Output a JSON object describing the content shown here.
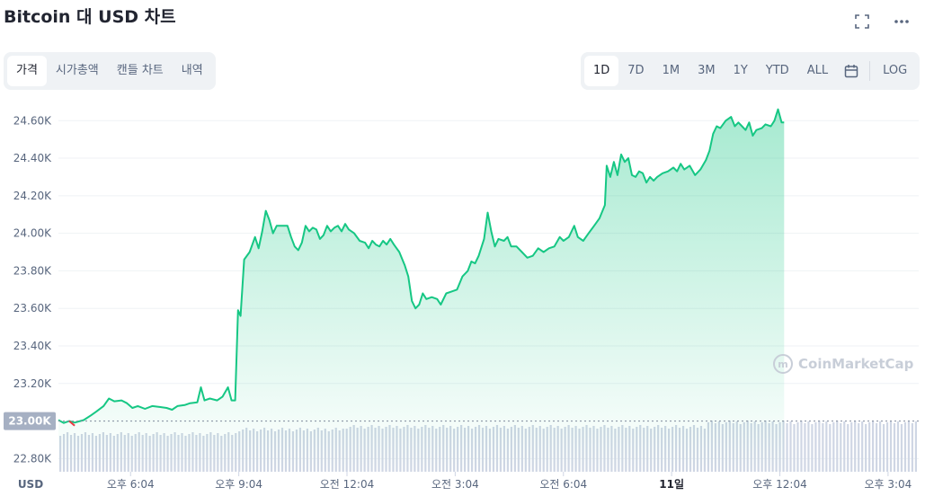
{
  "header": {
    "title": "Bitcoin 대 USD 차트",
    "fullscreen_icon": "expand-icon",
    "more_icon": "more-icon"
  },
  "view_tabs": [
    "가격",
    "시가총액",
    "캔들 차트",
    "내역"
  ],
  "active_view_tab": "가격",
  "range_tabs": [
    "1D",
    "7D",
    "1M",
    "3M",
    "1Y",
    "YTD",
    "ALL"
  ],
  "active_range_tab": "1D",
  "calendar_icon": "calendar-icon",
  "log_label": "LOG",
  "watermark": "CoinMarketCap",
  "colors": {
    "line": "#16c784",
    "down": "#ea3943",
    "current_badge": "#a6b0c3",
    "volume": "#cfd6e4"
  },
  "chart_data": {
    "type": "area",
    "y_tick_labels": [
      "24.60K",
      "24.40K",
      "24.20K",
      "24.00K",
      "23.80K",
      "23.60K",
      "23.40K",
      "23.20K",
      "23.00K",
      "22.80K"
    ],
    "y_ticks": [
      24600,
      24400,
      24200,
      24000,
      23800,
      23600,
      23400,
      23200,
      23000,
      22800
    ],
    "ylim": [
      22730,
      24740
    ],
    "reference_value": 23000,
    "reference_label": "23.00K",
    "currency_label": "USD",
    "x_tick_labels": [
      "오후 6:04",
      "오후 9:04",
      "오전 12:04",
      "오전 3:04",
      "오전 6:04",
      "11일",
      "오후 12:04",
      "오후 3:04"
    ],
    "x_tick_hours": [
      2,
      5,
      8,
      11,
      14,
      17,
      20,
      23
    ],
    "bold_x_tick": "11일",
    "xlim": [
      0,
      23.85
    ],
    "series": [
      {
        "values": [
          [
            0.0,
            23005
          ],
          [
            0.15,
            22990
          ],
          [
            0.3,
            23000
          ],
          [
            0.45,
            22992
          ],
          [
            0.7,
            23005
          ],
          [
            0.9,
            23030
          ],
          [
            1.05,
            23050
          ],
          [
            1.25,
            23080
          ],
          [
            1.4,
            23120
          ],
          [
            1.55,
            23105
          ],
          [
            1.75,
            23110
          ],
          [
            1.9,
            23095
          ],
          [
            2.05,
            23070
          ],
          [
            2.2,
            23080
          ],
          [
            2.4,
            23065
          ],
          [
            2.6,
            23080
          ],
          [
            2.8,
            23075
          ],
          [
            3.0,
            23070
          ],
          [
            3.15,
            23060
          ],
          [
            3.3,
            23080
          ],
          [
            3.5,
            23085
          ],
          [
            3.65,
            23095
          ],
          [
            3.85,
            23100
          ],
          [
            3.95,
            23180
          ],
          [
            4.05,
            23110
          ],
          [
            4.2,
            23120
          ],
          [
            4.4,
            23110
          ],
          [
            4.55,
            23130
          ],
          [
            4.7,
            23180
          ],
          [
            4.8,
            23110
          ],
          [
            4.9,
            23110
          ],
          [
            4.98,
            23590
          ],
          [
            5.05,
            23560
          ],
          [
            5.15,
            23860
          ],
          [
            5.3,
            23900
          ],
          [
            5.45,
            23980
          ],
          [
            5.55,
            23920
          ],
          [
            5.65,
            24010
          ],
          [
            5.75,
            24120
          ],
          [
            5.85,
            24070
          ],
          [
            5.95,
            24000
          ],
          [
            6.05,
            24040
          ],
          [
            6.2,
            24040
          ],
          [
            6.35,
            24040
          ],
          [
            6.45,
            23980
          ],
          [
            6.55,
            23930
          ],
          [
            6.65,
            23910
          ],
          [
            6.75,
            23950
          ],
          [
            6.85,
            24040
          ],
          [
            6.95,
            24010
          ],
          [
            7.05,
            24030
          ],
          [
            7.15,
            24020
          ],
          [
            7.25,
            23970
          ],
          [
            7.35,
            23990
          ],
          [
            7.45,
            24040
          ],
          [
            7.55,
            24010
          ],
          [
            7.65,
            24030
          ],
          [
            7.75,
            24040
          ],
          [
            7.85,
            24010
          ],
          [
            7.95,
            24050
          ],
          [
            8.05,
            24020
          ],
          [
            8.2,
            24000
          ],
          [
            8.35,
            23960
          ],
          [
            8.5,
            23950
          ],
          [
            8.6,
            23920
          ],
          [
            8.7,
            23960
          ],
          [
            8.8,
            23940
          ],
          [
            8.9,
            23930
          ],
          [
            9.0,
            23960
          ],
          [
            9.1,
            23940
          ],
          [
            9.2,
            23970
          ],
          [
            9.3,
            23940
          ],
          [
            9.45,
            23900
          ],
          [
            9.6,
            23830
          ],
          [
            9.7,
            23770
          ],
          [
            9.8,
            23640
          ],
          [
            9.9,
            23600
          ],
          [
            10.0,
            23620
          ],
          [
            10.1,
            23680
          ],
          [
            10.2,
            23650
          ],
          [
            10.35,
            23660
          ],
          [
            10.5,
            23650
          ],
          [
            10.6,
            23620
          ],
          [
            10.75,
            23680
          ],
          [
            10.9,
            23690
          ],
          [
            11.05,
            23700
          ],
          [
            11.2,
            23770
          ],
          [
            11.35,
            23800
          ],
          [
            11.45,
            23850
          ],
          [
            11.55,
            23840
          ],
          [
            11.65,
            23880
          ],
          [
            11.8,
            23970
          ],
          [
            11.9,
            24110
          ],
          [
            12.0,
            24010
          ],
          [
            12.1,
            23930
          ],
          [
            12.2,
            23970
          ],
          [
            12.35,
            23960
          ],
          [
            12.45,
            23980
          ],
          [
            12.55,
            23930
          ],
          [
            12.7,
            23930
          ],
          [
            12.85,
            23900
          ],
          [
            13.0,
            23870
          ],
          [
            13.15,
            23880
          ],
          [
            13.3,
            23920
          ],
          [
            13.45,
            23900
          ],
          [
            13.6,
            23920
          ],
          [
            13.75,
            23930
          ],
          [
            13.9,
            23980
          ],
          [
            14.0,
            23960
          ],
          [
            14.15,
            23980
          ],
          [
            14.3,
            24040
          ],
          [
            14.4,
            23980
          ],
          [
            14.55,
            23960
          ],
          [
            14.7,
            24000
          ],
          [
            14.85,
            24040
          ],
          [
            15.0,
            24080
          ],
          [
            15.15,
            24150
          ],
          [
            15.2,
            24360
          ],
          [
            15.3,
            24300
          ],
          [
            15.4,
            24380
          ],
          [
            15.5,
            24310
          ],
          [
            15.6,
            24420
          ],
          [
            15.7,
            24380
          ],
          [
            15.8,
            24400
          ],
          [
            15.9,
            24310
          ],
          [
            16.0,
            24300
          ],
          [
            16.1,
            24330
          ],
          [
            16.2,
            24320
          ],
          [
            16.3,
            24270
          ],
          [
            16.4,
            24300
          ],
          [
            16.5,
            24280
          ],
          [
            16.6,
            24300
          ],
          [
            16.75,
            24320
          ],
          [
            16.9,
            24330
          ],
          [
            17.05,
            24350
          ],
          [
            17.15,
            24330
          ],
          [
            17.25,
            24370
          ],
          [
            17.35,
            24340
          ],
          [
            17.5,
            24360
          ],
          [
            17.65,
            24310
          ],
          [
            17.8,
            24340
          ],
          [
            17.95,
            24390
          ],
          [
            18.05,
            24440
          ],
          [
            18.15,
            24530
          ],
          [
            18.25,
            24570
          ],
          [
            18.35,
            24560
          ],
          [
            18.5,
            24600
          ],
          [
            18.65,
            24620
          ],
          [
            18.75,
            24570
          ],
          [
            18.85,
            24590
          ],
          [
            18.95,
            24570
          ],
          [
            19.05,
            24550
          ],
          [
            19.15,
            24590
          ],
          [
            19.25,
            24520
          ],
          [
            19.35,
            24550
          ],
          [
            19.5,
            24560
          ],
          [
            19.6,
            24580
          ],
          [
            19.75,
            24570
          ],
          [
            19.85,
            24600
          ],
          [
            19.95,
            24660
          ],
          [
            20.05,
            24590
          ],
          [
            20.12,
            24590
          ]
        ]
      }
    ]
  }
}
